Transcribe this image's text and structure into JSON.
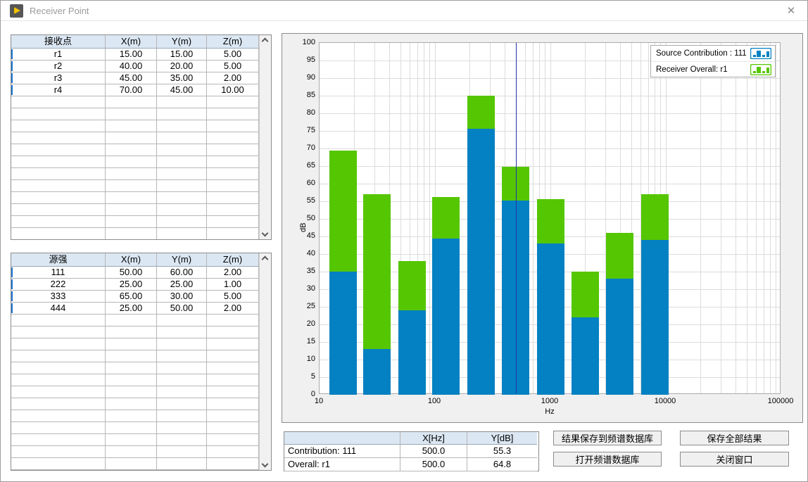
{
  "window": {
    "title": "Receiver Point",
    "close_glyph": "✕"
  },
  "receiver_table": {
    "headers": [
      "接收点",
      "X(m)",
      "Y(m)",
      "Z(m)"
    ],
    "rows": [
      [
        "r1",
        "15.00",
        "15.00",
        "5.00"
      ],
      [
        "r2",
        "40.00",
        "20.00",
        "5.00"
      ],
      [
        "r3",
        "45.00",
        "35.00",
        "2.00"
      ],
      [
        "r4",
        "70.00",
        "45.00",
        "10.00"
      ]
    ]
  },
  "source_table": {
    "headers": [
      "源强",
      "X(m)",
      "Y(m)",
      "Z(m)"
    ],
    "rows": [
      [
        "111",
        "50.00",
        "60.00",
        "2.00"
      ],
      [
        "222",
        "25.00",
        "25.00",
        "1.00"
      ],
      [
        "333",
        "65.00",
        "30.00",
        "5.00"
      ],
      [
        "444",
        "25.00",
        "50.00",
        "2.00"
      ]
    ]
  },
  "chart_data": {
    "type": "bar",
    "x_scale": "log",
    "xlabel": "Hz",
    "ylabel": "dB",
    "xlim": [
      10,
      100000
    ],
    "ylim": [
      0,
      100
    ],
    "y_tick_step": 5,
    "x_ticks": [
      10,
      100,
      1000,
      10000,
      100000
    ],
    "grid": true,
    "legend_position": "top-right",
    "categories_hz": [
      16,
      31.5,
      63,
      125,
      250,
      500,
      1000,
      2000,
      4000,
      8000
    ],
    "series": [
      {
        "name": "Source Contribution : 111",
        "color": "#0481c2",
        "values": [
          35.0,
          13.0,
          24.0,
          44.5,
          75.7,
          55.3,
          43.1,
          22.0,
          33.0,
          44.0
        ]
      },
      {
        "name": "Receiver Overall: r1",
        "color": "#55c602",
        "values": [
          69.5,
          57.0,
          38.0,
          56.3,
          85.0,
          64.8,
          55.7,
          35.0,
          46.0,
          57.1
        ]
      }
    ],
    "stacked_note": "overall series drawn from contribution top to overall value",
    "cursor_hz": 500,
    "cursor_color": "#2033a8"
  },
  "cursor_table": {
    "headers": [
      "",
      "X[Hz]",
      "Y[dB]"
    ],
    "rows": [
      [
        "Contribution: 111",
        "500.0",
        "55.3"
      ],
      [
        "Overall: r1",
        "500.0",
        "64.8"
      ]
    ]
  },
  "buttons": {
    "save_to_db": "结果保存到频谱数据库",
    "save_all": "保存全部结果",
    "open_db": "打开频谱数据库",
    "close_window": "关闭窗口"
  }
}
